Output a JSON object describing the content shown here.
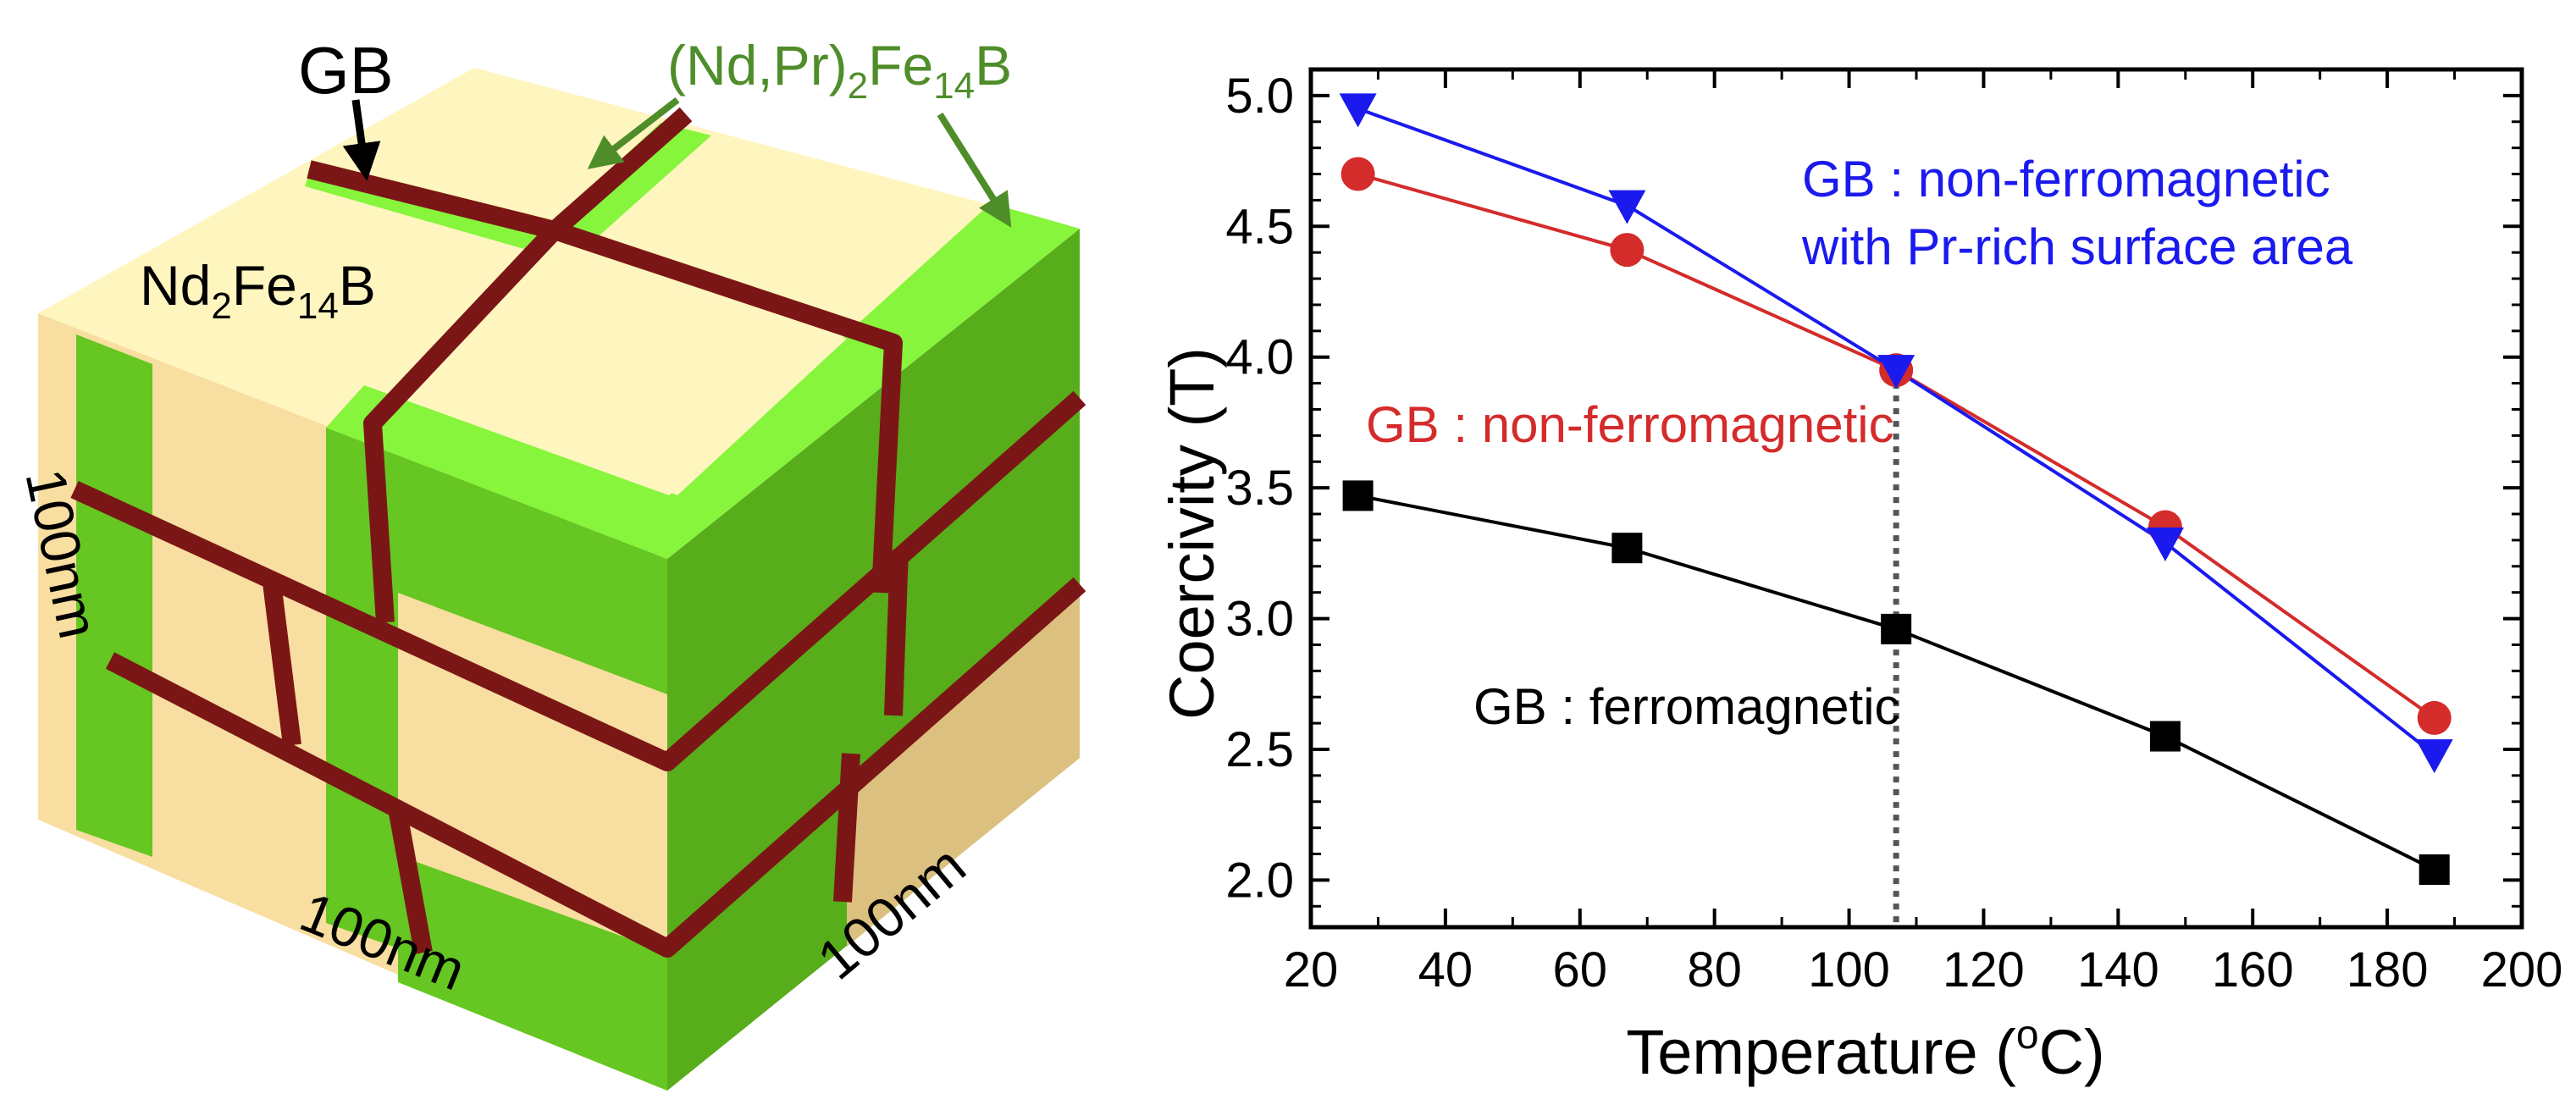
{
  "cube": {
    "gb_label": "GB",
    "shell_phase": {
      "prefix": "(Nd,Pr)",
      "sub1": "2",
      "mid": "Fe",
      "sub2": "14",
      "suffix": "B"
    },
    "core_phase": {
      "prefix": "Nd",
      "sub1": "2",
      "mid": "Fe",
      "sub2": "14",
      "suffix": "B"
    },
    "dim_left": "100nm",
    "dim_bottom": "100nm",
    "dim_right": "100nm"
  },
  "colors": {
    "grain_core_top": "#fff5bf",
    "grain_core_left": "#f8dea0",
    "grain_core_right": "#dcc07f",
    "shell_top": "#86f53c",
    "shell_left": "#66c622",
    "shell_right": "#57ad1a",
    "gb": "#7b1616",
    "series_black": "#000000",
    "series_red": "#d42b2b",
    "series_blue": "#1a1aee"
  },
  "chart_data": {
    "type": "line",
    "title": "",
    "xlabel": {
      "main": "Temperature (",
      "sup": "o",
      "unit": "C)"
    },
    "ylabel": "Coercivity (T)",
    "xlim": [
      20,
      200
    ],
    "ylim": [
      1.82,
      5.1
    ],
    "x_ticks": [
      20,
      40,
      60,
      80,
      100,
      120,
      140,
      160,
      180,
      200
    ],
    "y_ticks": [
      2.0,
      2.5,
      3.0,
      3.5,
      4.0,
      4.5,
      5.0
    ],
    "x_tick_labels": [
      "20",
      "40",
      "60",
      "80",
      "100",
      "120",
      "140",
      "160",
      "180",
      "200"
    ],
    "y_tick_labels": [
      "2.0",
      "2.5",
      "3.0",
      "3.5",
      "4.0",
      "4.5",
      "5.0"
    ],
    "series": [
      {
        "name": "GB : ferromagnetic",
        "marker": "square",
        "color": "#000000",
        "x": [
          27,
          67,
          107,
          147,
          187
        ],
        "y": [
          3.47,
          3.27,
          2.96,
          2.55,
          2.04
        ]
      },
      {
        "name": "GB : non-ferromagnetic",
        "marker": "circle",
        "color": "#d42b2b",
        "x": [
          27,
          67,
          107,
          147,
          187
        ],
        "y": [
          4.7,
          4.41,
          3.95,
          3.35,
          2.62
        ]
      },
      {
        "name": "GB : non-ferromagnetic with Pr-rich surface area",
        "marker": "triangle-down",
        "color": "#1a1aee",
        "x": [
          27,
          67,
          107,
          147,
          187
        ],
        "y": [
          4.95,
          4.58,
          3.95,
          3.29,
          2.48
        ]
      }
    ],
    "annotations": {
      "blue_line1": "GB : non-ferromagnetic",
      "blue_line2": "with Pr-rich surface area",
      "red": "GB : non-ferromagnetic",
      "black": "GB : ferromagnetic"
    },
    "reference_line": {
      "x": 107,
      "style": "dotted"
    }
  }
}
